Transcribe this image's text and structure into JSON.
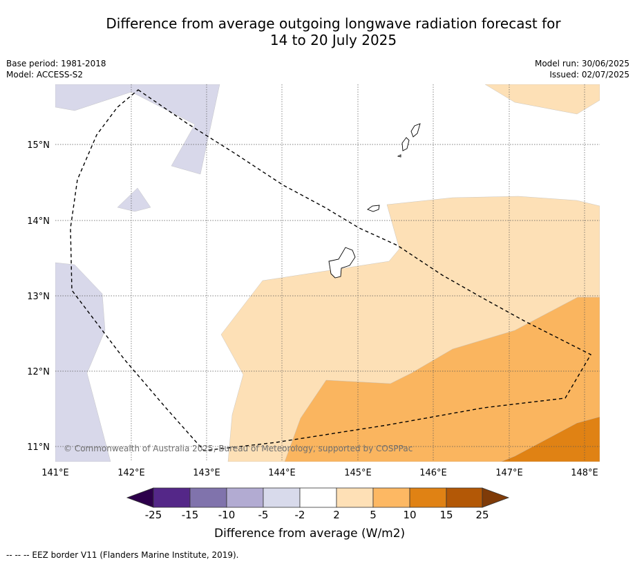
{
  "title": {
    "line1": "Difference from average outgoing longwave radiation forecast for",
    "line2": "14 to 20 July 2025"
  },
  "meta_left": {
    "base_period": "Base period: 1981-2018",
    "model": "Model: ACCESS-S2"
  },
  "meta_right": {
    "model_run": "Model run: 30/06/2025",
    "issued": "Issued: 02/07/2025"
  },
  "map": {
    "lon_ticks": [
      "141°E",
      "142°E",
      "143°E",
      "144°E",
      "145°E",
      "146°E",
      "147°E",
      "148°E"
    ],
    "lat_ticks": [
      "15°N",
      "14°N",
      "13°N",
      "12°N",
      "11°N"
    ],
    "copyright": "© Commonwealth of Australia 2025, Bureau of Meteorology, supported by COSPPac",
    "colors": {
      "light_purple": "#d8d8ea",
      "light_orange": "#fde0b6",
      "mid_orange": "#fab55f",
      "dark_orange": "#e08214"
    }
  },
  "colorbar": {
    "title": "Difference from average (W/m2)",
    "tick_labels": [
      "-25",
      "-15",
      "-10",
      "-5",
      "-2",
      "2",
      "5",
      "10",
      "15",
      "25"
    ],
    "colors": [
      "#2d004b",
      "#542788",
      "#8073ac",
      "#b2abd2",
      "#d8daeb",
      "#ffffff",
      "#fee0b6",
      "#fdb863",
      "#e08214",
      "#b35806",
      "#7f3b08"
    ]
  },
  "footer": "--  --  -- EEZ border V11 (Flanders Marine Institute, 2019)."
}
